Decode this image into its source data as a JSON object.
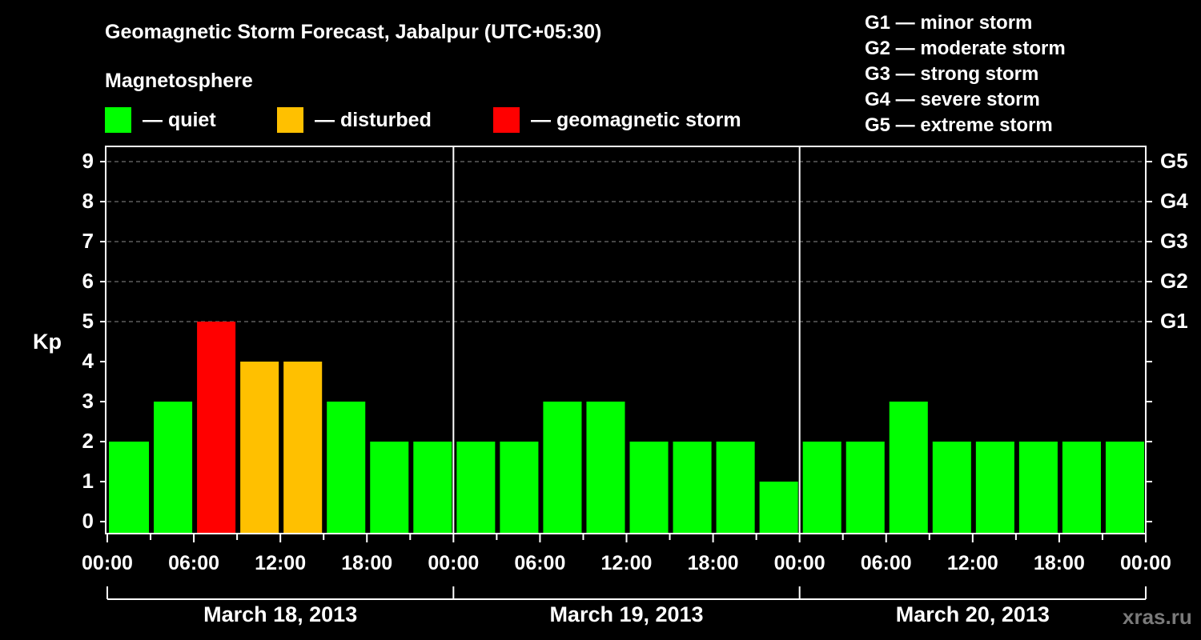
{
  "header": {
    "title": "Geomagnetic Storm Forecast, Jabalpur (UTC+05:30)",
    "subtitle": "Magnetosphere"
  },
  "legend": {
    "items": [
      {
        "label": "— quiet",
        "color": "#00ff00"
      },
      {
        "label": "— disturbed",
        "color": "#ffc000"
      },
      {
        "label": "— geomagnetic storm",
        "color": "#ff0000"
      }
    ]
  },
  "storm_scale": [
    "G1 — minor storm",
    "G2 — moderate storm",
    "G3 — strong storm",
    "G4 — severe storm",
    "G5 — extreme storm"
  ],
  "axes": {
    "ylabel": "Kp",
    "yticks": [
      "0",
      "1",
      "2",
      "3",
      "4",
      "5",
      "6",
      "7",
      "8",
      "9"
    ],
    "gticks": [
      {
        "label": "G1",
        "kp": 5
      },
      {
        "label": "G2",
        "kp": 6
      },
      {
        "label": "G3",
        "kp": 7
      },
      {
        "label": "G4",
        "kp": 8
      },
      {
        "label": "G5",
        "kp": 9
      }
    ],
    "xticks": [
      "00:00",
      "06:00",
      "12:00",
      "18:00",
      "00:00",
      "06:00",
      "12:00",
      "18:00",
      "00:00",
      "06:00",
      "12:00",
      "18:00",
      "00:00"
    ],
    "days": [
      "March 18, 2013",
      "March 19, 2013",
      "March 20, 2013"
    ]
  },
  "watermark": "xras.ru",
  "colors": {
    "quiet": "#00ff00",
    "disturbed": "#ffc000",
    "storm": "#ff0000",
    "grid": "#8c8c8c",
    "axis": "#ffffff"
  },
  "chart_data": {
    "type": "bar",
    "title": "Geomagnetic Storm Forecast, Jabalpur (UTC+05:30)",
    "subtitle": "Magnetosphere",
    "xlabel": "",
    "ylabel": "Kp",
    "ylim": [
      0,
      9
    ],
    "grid": "dashed horizontal at Kp 5-9",
    "interval_hours": 3,
    "categories": [
      "Mar 18 00:00",
      "Mar 18 03:00",
      "Mar 18 06:00",
      "Mar 18 09:00",
      "Mar 18 12:00",
      "Mar 18 15:00",
      "Mar 18 18:00",
      "Mar 18 21:00",
      "Mar 19 00:00",
      "Mar 19 03:00",
      "Mar 19 06:00",
      "Mar 19 09:00",
      "Mar 19 12:00",
      "Mar 19 15:00",
      "Mar 19 18:00",
      "Mar 19 21:00",
      "Mar 20 00:00",
      "Mar 20 03:00",
      "Mar 20 06:00",
      "Mar 20 09:00",
      "Mar 20 12:00",
      "Mar 20 15:00",
      "Mar 20 18:00",
      "Mar 20 21:00"
    ],
    "values": [
      2,
      3,
      5,
      4,
      4,
      3,
      2,
      2,
      2,
      2,
      3,
      3,
      2,
      2,
      2,
      1,
      2,
      2,
      3,
      2,
      2,
      2,
      2,
      2
    ],
    "status": [
      "quiet",
      "quiet",
      "storm",
      "disturbed",
      "disturbed",
      "quiet",
      "quiet",
      "quiet",
      "quiet",
      "quiet",
      "quiet",
      "quiet",
      "quiet",
      "quiet",
      "quiet",
      "quiet",
      "quiet",
      "quiet",
      "quiet",
      "quiet",
      "quiet",
      "quiet",
      "quiet",
      "quiet"
    ],
    "legend": [
      "quiet",
      "disturbed",
      "geomagnetic storm"
    ],
    "secondary_axis": {
      "G1": 5,
      "G2": 6,
      "G3": 7,
      "G4": 8,
      "G5": 9
    }
  }
}
